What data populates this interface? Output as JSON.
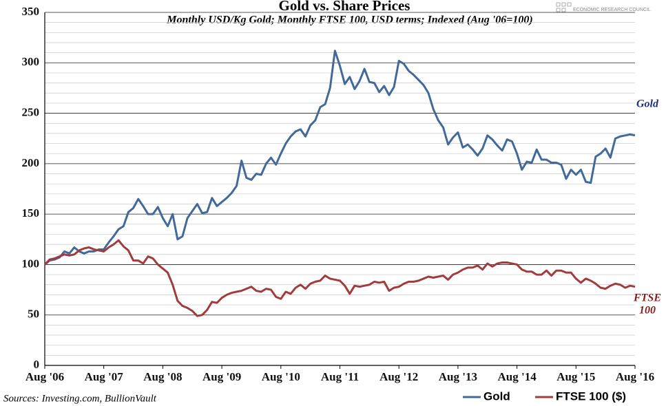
{
  "chart_data": {
    "type": "line",
    "title": "Gold vs. Share Prices",
    "subtitle": "Monthly USD/Kg Gold; Monthly FTSE 100, USD terms; Indexed (Aug '06=100)",
    "source": "Sources: Investing.com, BullionVault",
    "logo": "ECONOMIC RESEARCH COUNCIL",
    "categories": [
      "Aug '06",
      null,
      null,
      null,
      null,
      null,
      null,
      null,
      null,
      null,
      null,
      null,
      "Aug '07",
      null,
      null,
      null,
      null,
      null,
      null,
      null,
      null,
      null,
      null,
      null,
      "Aug '08",
      null,
      null,
      null,
      null,
      null,
      null,
      null,
      null,
      null,
      null,
      null,
      "Aug '09",
      null,
      null,
      null,
      null,
      null,
      null,
      null,
      null,
      null,
      null,
      null,
      "Aug '10",
      null,
      null,
      null,
      null,
      null,
      null,
      null,
      null,
      null,
      null,
      null,
      "Aug '11",
      null,
      null,
      null,
      null,
      null,
      null,
      null,
      null,
      null,
      null,
      null,
      "Aug '12",
      null,
      null,
      null,
      null,
      null,
      null,
      null,
      null,
      null,
      null,
      null,
      "Aug '13",
      null,
      null,
      null,
      null,
      null,
      null,
      null,
      null,
      null,
      null,
      null,
      "Aug '14",
      null,
      null,
      null,
      null,
      null,
      null,
      null,
      null,
      null,
      null,
      null,
      "Aug '15",
      null,
      null,
      null,
      null,
      null,
      null,
      null,
      null,
      null,
      null,
      null,
      "Aug '16"
    ],
    "series": [
      {
        "name": "Gold",
        "color": "#41699a",
        "end_label": [
          "Gold"
        ],
        "label_color": "#1f2f7a",
        "values": [
          100,
          104,
          105,
          107,
          113,
          111,
          117,
          113,
          111,
          113,
          113,
          115,
          115,
          122,
          128,
          135,
          138,
          152,
          156,
          165,
          158,
          150,
          150,
          157,
          146,
          138,
          150,
          125,
          128,
          146,
          153,
          160,
          151,
          152,
          166,
          158,
          162,
          166,
          171,
          178,
          203,
          186,
          184,
          190,
          189,
          200,
          206,
          199,
          210,
          220,
          227,
          232,
          234,
          227,
          238,
          243,
          256,
          259,
          275,
          312,
          297,
          279,
          286,
          274,
          282,
          294,
          281,
          280,
          271,
          277,
          268,
          276,
          302,
          299,
          292,
          288,
          283,
          278,
          270,
          254,
          243,
          236,
          219,
          226,
          231,
          216,
          219,
          214,
          208,
          215,
          228,
          224,
          218,
          213,
          224,
          222,
          210,
          194,
          202,
          201,
          214,
          204,
          204,
          201,
          201,
          199,
          185,
          194,
          189,
          194,
          182,
          181,
          207,
          210,
          215,
          206,
          225,
          227,
          228,
          229,
          228
        ]
      },
      {
        "name": "FTSE 100 ($)",
        "color": "#a23b3b",
        "end_label": [
          "FTSE",
          "100"
        ],
        "label_color": "#8b1a1a",
        "values": [
          100,
          105,
          106,
          108,
          110,
          109,
          110,
          114,
          116,
          117,
          115,
          114,
          113,
          117,
          120,
          124,
          118,
          114,
          104,
          104,
          101,
          108,
          106,
          100,
          96,
          92,
          80,
          64,
          59,
          57,
          54,
          49,
          50,
          55,
          63,
          62,
          67,
          70,
          72,
          73,
          74,
          76,
          78,
          74,
          73,
          76,
          75,
          68,
          66,
          73,
          71,
          77,
          80,
          76,
          81,
          83,
          84,
          89,
          86,
          85,
          84,
          79,
          71,
          79,
          78,
          79,
          80,
          83,
          82,
          83,
          74,
          77,
          78,
          81,
          83,
          83,
          84,
          86,
          88,
          87,
          88,
          89,
          85,
          90,
          92,
          95,
          97,
          97,
          99,
          95,
          101,
          98,
          101,
          102,
          102,
          101,
          100,
          95,
          93,
          93,
          90,
          90,
          94,
          89,
          94,
          94,
          92,
          92,
          86,
          82,
          86,
          84,
          81,
          77,
          76,
          79,
          81,
          80,
          77,
          79,
          78
        ]
      }
    ],
    "ylim": [
      0,
      350
    ],
    "yticks": [
      0,
      50,
      100,
      150,
      200,
      250,
      300,
      350
    ],
    "grid": true
  }
}
